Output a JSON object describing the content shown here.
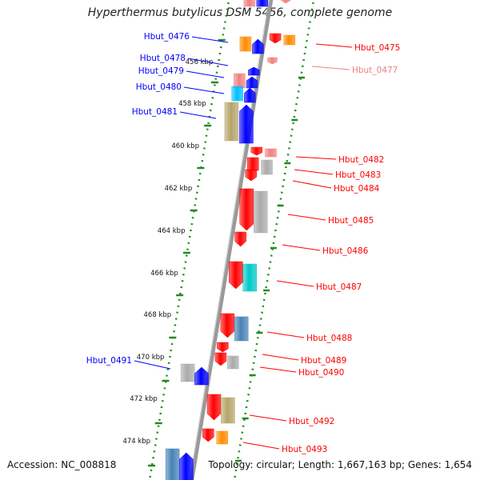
{
  "title": "Hyperthermus butylicus DSM 5456, complete genome",
  "accession": "Accession: NC_008818",
  "topology": "Topology: circular; Length: 1,667,163 bp; Genes: 1,654",
  "colors": {
    "red": "#ff0000",
    "blue": "#0000ff",
    "pink": "#f08080",
    "orange": "#ff8c00",
    "gray": "#aaaaaa",
    "cyan": "#00bfff",
    "teal": "#00c8c8",
    "olive": "#b5a56a",
    "steel": "#4682b4",
    "backbone": "#999999",
    "tick_dots": "#228b22"
  },
  "ticks": [
    "456 kbp",
    "458 kbp",
    "460 kbp",
    "462 kbp",
    "464 kbp",
    "466 kbp",
    "468 kbp",
    "470 kbp",
    "472 kbp",
    "474 kbp"
  ],
  "genes_left": [
    {
      "label": "Hbut_0476",
      "color": "blue"
    },
    {
      "label": "Hbut_0478",
      "color": "blue"
    },
    {
      "label": "Hbut_0479",
      "color": "blue"
    },
    {
      "label": "Hbut_0480",
      "color": "blue"
    },
    {
      "label": "Hbut_0481",
      "color": "blue"
    },
    {
      "label": "Hbut_0491",
      "color": "blue"
    }
  ],
  "genes_right": [
    {
      "label": "Hbut_0475",
      "color": "red"
    },
    {
      "label": "Hbut_0477",
      "color": "pink"
    },
    {
      "label": "Hbut_0482",
      "color": "red"
    },
    {
      "label": "Hbut_0483",
      "color": "red"
    },
    {
      "label": "Hbut_0484",
      "color": "red"
    },
    {
      "label": "Hbut_0485",
      "color": "red"
    },
    {
      "label": "Hbut_0486",
      "color": "red"
    },
    {
      "label": "Hbut_0487",
      "color": "red"
    },
    {
      "label": "Hbut_0488",
      "color": "red"
    },
    {
      "label": "Hbut_0489",
      "color": "red"
    },
    {
      "label": "Hbut_0490",
      "color": "red"
    },
    {
      "label": "Hbut_0492",
      "color": "red"
    },
    {
      "label": "Hbut_0493",
      "color": "red"
    }
  ]
}
